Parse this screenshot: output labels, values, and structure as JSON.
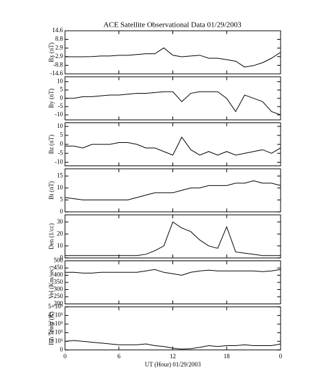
{
  "chart_data": [
    {
      "type": "line",
      "title": "ACE Satellite Observational Data   01/29/2003",
      "ylabel": "Bx (nT)",
      "color": "#000000",
      "xlim": [
        0,
        24
      ],
      "x": [
        0,
        1,
        2,
        3,
        4,
        5,
        6,
        7,
        8,
        9,
        10,
        11,
        12,
        13,
        14,
        15,
        16,
        17,
        18,
        19,
        20,
        21,
        22,
        23,
        24
      ],
      "values": [
        -3,
        -3,
        -3,
        -2.9,
        -2.5,
        -2.5,
        -2,
        -2,
        -1.5,
        -1,
        -1,
        3,
        -2,
        -3,
        -2.5,
        -2,
        -4,
        -4,
        -5,
        -6,
        -10,
        -9,
        -7,
        -4,
        0
      ],
      "ylim": [
        -14.6,
        14.6
      ],
      "yticks": [
        -14.6,
        -8.8,
        -2.9,
        2.9,
        8.8,
        14.6
      ]
    },
    {
      "type": "line",
      "ylabel": "By (nT)",
      "color": "#000000",
      "xlim": [
        0,
        24
      ],
      "x": [
        0,
        1,
        2,
        3,
        4,
        5,
        6,
        7,
        8,
        9,
        10,
        11,
        12,
        13,
        14,
        15,
        16,
        17,
        18,
        19,
        20,
        21,
        22,
        23,
        24
      ],
      "values": [
        0,
        0,
        1,
        1,
        1.5,
        2,
        2,
        2.5,
        3,
        3,
        3.5,
        4,
        4,
        -2,
        3,
        4,
        4,
        4,
        0,
        -8,
        2,
        0,
        -2,
        -8,
        -10
      ],
      "ylim": [
        -13,
        13
      ],
      "yticks": [
        -10,
        -5,
        0,
        5,
        10
      ]
    },
    {
      "type": "line",
      "ylabel": "Bz (nT)",
      "color": "#000000",
      "xlim": [
        0,
        24
      ],
      "x": [
        0,
        1,
        2,
        3,
        4,
        5,
        6,
        7,
        8,
        9,
        10,
        11,
        12,
        13,
        14,
        15,
        16,
        17,
        18,
        19,
        20,
        21,
        22,
        23,
        24
      ],
      "values": [
        -1,
        -1,
        -2,
        0,
        0,
        0,
        1,
        1,
        0,
        -2,
        -2,
        -4,
        -6,
        4,
        -3,
        -6,
        -4,
        -6,
        -4,
        -6,
        -5,
        -4,
        -3,
        -5,
        -2
      ],
      "ylim": [
        -12,
        12
      ],
      "yticks": [
        -10,
        -5,
        0,
        5,
        10
      ]
    },
    {
      "type": "line",
      "ylabel": "Bt (nT)",
      "color": "#000000",
      "xlim": [
        0,
        24
      ],
      "x": [
        0,
        1,
        2,
        3,
        4,
        5,
        6,
        7,
        8,
        9,
        10,
        11,
        12,
        13,
        14,
        15,
        16,
        17,
        18,
        19,
        20,
        21,
        22,
        23,
        24
      ],
      "values": [
        6,
        5.5,
        5,
        5,
        5,
        5,
        5,
        5,
        6,
        7,
        8,
        8,
        8,
        9,
        10,
        10,
        11,
        11,
        11,
        12,
        12,
        13,
        12,
        12,
        11
      ],
      "ylim": [
        0,
        18
      ],
      "yticks": [
        0,
        5,
        10,
        15
      ]
    },
    {
      "type": "line",
      "ylabel": "Den (1/cc)",
      "color": "#000000",
      "xlim": [
        0,
        24
      ],
      "x": [
        0,
        1,
        2,
        3,
        4,
        5,
        6,
        7,
        8,
        9,
        10,
        11,
        12,
        13,
        14,
        15,
        16,
        17,
        18,
        19,
        20,
        21,
        22,
        23,
        24
      ],
      "values": [
        2,
        2,
        2,
        2,
        2,
        2,
        2,
        2,
        2,
        3,
        6,
        10,
        30,
        25,
        22,
        15,
        10,
        8,
        26,
        5,
        4,
        3,
        2,
        2,
        2
      ],
      "ylim": [
        0,
        36
      ],
      "yticks": [
        0,
        10,
        20,
        30
      ]
    },
    {
      "type": "line",
      "ylabel": "Vel (Km/sec)",
      "color": "#000000",
      "xlim": [
        0,
        24
      ],
      "x": [
        0,
        1,
        2,
        3,
        4,
        5,
        6,
        7,
        8,
        9,
        10,
        11,
        12,
        13,
        14,
        15,
        16,
        17,
        18,
        19,
        20,
        21,
        22,
        23,
        24
      ],
      "values": [
        420,
        420,
        415,
        415,
        420,
        420,
        420,
        420,
        420,
        430,
        440,
        420,
        410,
        400,
        420,
        430,
        435,
        430,
        430,
        430,
        430,
        430,
        425,
        430,
        440
      ],
      "ylim": [
        200,
        500
      ],
      "yticks": [
        200,
        250,
        300,
        350,
        400,
        450,
        500
      ]
    },
    {
      "type": "line",
      "ylabel": "Ion Temp (K)",
      "xlabel": "UT (Hour)   01/29/2003",
      "color": "#000000",
      "xlim": [
        0,
        24
      ],
      "x": [
        0,
        1,
        2,
        3,
        4,
        5,
        6,
        7,
        8,
        9,
        10,
        11,
        12,
        13,
        14,
        15,
        16,
        17,
        18,
        19,
        20,
        21,
        22,
        23,
        24
      ],
      "values": [
        100000,
        110000,
        100000,
        90000,
        80000,
        70000,
        60000,
        60000,
        60000,
        70000,
        50000,
        40000,
        20000,
        10000,
        15000,
        30000,
        50000,
        40000,
        50000,
        50000,
        60000,
        50000,
        50000,
        50000,
        70000
      ],
      "ylim": [
        0,
        500000
      ],
      "yticks": [
        0,
        {
          "value": 100000,
          "label": "1×10⁵"
        },
        {
          "value": 200000,
          "label": "2×10⁵"
        },
        {
          "value": 300000,
          "label": "3×10⁵"
        },
        {
          "value": 400000,
          "label": "4×10⁵"
        },
        {
          "value": 500000,
          "label": "5×10⁵"
        }
      ],
      "xticks": [
        0,
        6,
        12,
        18,
        {
          "value": 24,
          "label": "0"
        }
      ]
    }
  ]
}
